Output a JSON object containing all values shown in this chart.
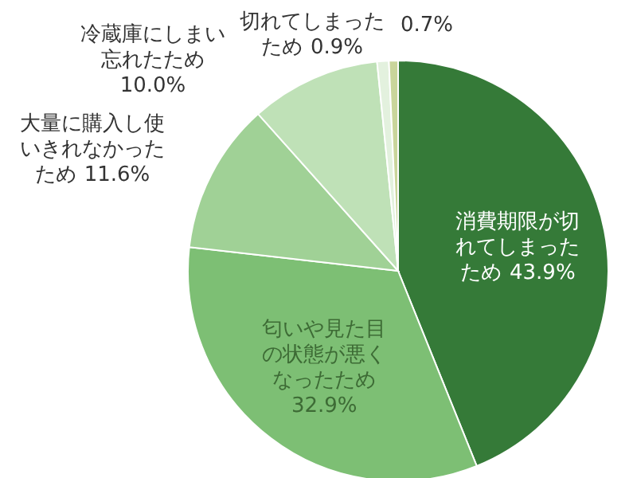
{
  "chart_data": {
    "type": "pie",
    "categories": [
      "消費期限が切れてしまったため",
      "匂いや見た目の状態が悪くなったため",
      "大量に購入し使いきれなかったため",
      "冷蔵庫にしまい忘れたため",
      "切れてしまったため",
      null
    ],
    "values": [
      43.9,
      32.9,
      11.6,
      10.0,
      0.9,
      0.7
    ],
    "value_labels": [
      "43.9%",
      "32.9%",
      "11.6%",
      "10.0%",
      "0.9%",
      "0.7%"
    ],
    "colors": [
      "#357a38",
      "#7dbf74",
      "#a0d196",
      "#bfe1b7",
      "#e3f1de",
      "#c9d59b"
    ]
  }
}
